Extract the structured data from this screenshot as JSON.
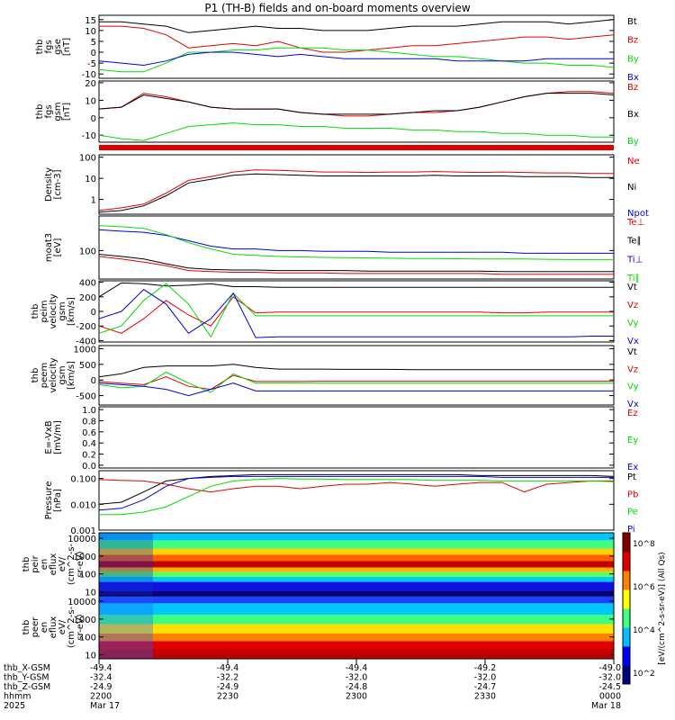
{
  "title": "P1 (TH-B) fields and on-board moments overview",
  "colors": {
    "black": "#000000",
    "red": "#e00000",
    "green": "#00dd00",
    "blue": "#0000e0"
  },
  "chart_data": [
    {
      "type": "line",
      "panel": "fgs-gse",
      "ylabel": [
        "thb",
        "fgs",
        "gse",
        "[nT]"
      ],
      "ylim": [
        -12,
        17
      ],
      "yticks": [
        15,
        10,
        5,
        0,
        -5,
        -10
      ],
      "series": [
        {
          "name": "Bt",
          "color": "#000000",
          "values": [
            14,
            14,
            13,
            12,
            9,
            10,
            11,
            12,
            11,
            11,
            10,
            10,
            10,
            11,
            12,
            12,
            12,
            13,
            14,
            14,
            14,
            13,
            14,
            15
          ]
        },
        {
          "name": "Bz",
          "color": "#e00000",
          "values": [
            12,
            12,
            11,
            8,
            2,
            3,
            4,
            3,
            5,
            2,
            0,
            0,
            1,
            2,
            3,
            3,
            4,
            5,
            6,
            7,
            7,
            6,
            7,
            8
          ]
        },
        {
          "name": "By",
          "color": "#00dd00",
          "values": [
            -8,
            -9,
            -9,
            -5,
            0,
            0,
            1,
            1,
            2,
            2,
            2,
            1,
            1,
            0,
            -1,
            -2,
            -2,
            -3,
            -4,
            -5,
            -5,
            -6,
            -6,
            -7
          ]
        },
        {
          "name": "Bx",
          "color": "#0000e0",
          "values": [
            -4,
            -5,
            -6,
            -4,
            -1,
            0,
            0,
            -1,
            -2,
            -1,
            -2,
            -3,
            -3,
            -3,
            -3,
            -3,
            -4,
            -4,
            -4,
            -4,
            -3,
            -3,
            -3,
            -3
          ]
        }
      ]
    },
    {
      "type": "line",
      "panel": "fgs-gsm",
      "ylabel": [
        "thb",
        "fgs",
        "gsm",
        "[nT]"
      ],
      "ylim": [
        -14,
        21
      ],
      "yticks": [
        20,
        10,
        0,
        -10
      ],
      "series": [
        {
          "name": "Bz",
          "color": "#e00000",
          "values": [
            5,
            6,
            14,
            12,
            9,
            6,
            5,
            5,
            5,
            3,
            2,
            1,
            1,
            2,
            3,
            3,
            4,
            6,
            9,
            12,
            14,
            15,
            15,
            14
          ]
        },
        {
          "name": "Bx",
          "color": "#000000",
          "values": [
            5,
            6,
            13,
            11,
            9,
            6,
            5,
            5,
            5,
            3,
            2,
            2,
            2,
            2,
            3,
            4,
            4,
            6,
            9,
            12,
            14,
            14,
            14,
            13
          ]
        },
        {
          "name": "By",
          "color": "#00dd00",
          "values": [
            -10,
            -12,
            -13,
            -9,
            -5,
            -4,
            -3,
            -4,
            -4,
            -5,
            -5,
            -6,
            -6,
            -6,
            -7,
            -7,
            -8,
            -8,
            -9,
            -9,
            -10,
            -10,
            -11,
            -11
          ]
        }
      ]
    },
    {
      "type": "line",
      "panel": "density",
      "ylabel": [
        "Density",
        "[cm-3]"
      ],
      "ylog": true,
      "ylim": [
        0.2,
        130
      ],
      "yticks": [
        100,
        10,
        1
      ],
      "series": [
        {
          "name": "Ne",
          "color": "#e00000",
          "values": [
            0.3,
            0.4,
            0.6,
            2,
            8,
            12,
            20,
            25,
            24,
            22,
            20,
            20,
            19,
            20,
            20,
            21,
            20,
            19,
            20,
            19,
            18,
            18,
            17,
            17
          ]
        },
        {
          "name": "Ni",
          "color": "#000000",
          "values": [
            0.25,
            0.3,
            0.5,
            1.5,
            6,
            9,
            14,
            16,
            15,
            14,
            13,
            13,
            13,
            13,
            13,
            14,
            13,
            13,
            13,
            12,
            12,
            12,
            11,
            11
          ]
        },
        {
          "name": "Npot",
          "color": "#0000e0",
          "values": []
        }
      ]
    },
    {
      "type": "line",
      "panel": "temperature",
      "ylabel": [
        "moat3",
        "[eV]"
      ],
      "ylog": true,
      "ylim": [
        18,
        800
      ],
      "yticks": [
        100
      ],
      "series": [
        {
          "name": "Te⊥",
          "color": "#e00000",
          "values": [
            70,
            60,
            50,
            40,
            30,
            28,
            27,
            27,
            26,
            26,
            26,
            25,
            25,
            25,
            25,
            25,
            25,
            25,
            24,
            24,
            24,
            24,
            24,
            24
          ]
        },
        {
          "name": "Te∥",
          "color": "#000000",
          "values": [
            80,
            70,
            60,
            45,
            35,
            32,
            31,
            31,
            30,
            30,
            30,
            30,
            29,
            29,
            29,
            29,
            29,
            29,
            28,
            28,
            28,
            28,
            28,
            28
          ]
        },
        {
          "name": "Ti⊥",
          "color": "#0000e0",
          "values": [
            350,
            320,
            300,
            250,
            180,
            130,
            110,
            110,
            100,
            100,
            95,
            95,
            95,
            90,
            90,
            90,
            90,
            90,
            90,
            85,
            85,
            85,
            85,
            85
          ]
        },
        {
          "name": "Ti∥",
          "color": "#00dd00",
          "values": [
            450,
            420,
            380,
            260,
            160,
            110,
            80,
            75,
            70,
            68,
            66,
            65,
            64,
            63,
            62,
            62,
            61,
            60,
            60,
            60,
            59,
            58,
            58,
            58
          ]
        }
      ]
    },
    {
      "type": "line",
      "panel": "peim-velocity",
      "ylabel": [
        "thb",
        "peim",
        "velocity",
        "gsm",
        "[km/s]"
      ],
      "ylim": [
        -420,
        420
      ],
      "yticks": [
        400,
        200,
        0,
        -200,
        -400
      ],
      "series": [
        {
          "name": "Vt",
          "color": "#000000",
          "values": [
            200,
            390,
            380,
            350,
            360,
            380,
            340,
            340,
            330,
            330,
            330,
            330,
            330,
            330,
            330,
            330,
            330,
            330,
            330,
            330,
            330,
            330,
            330,
            330
          ]
        },
        {
          "name": "Vz",
          "color": "#e00000",
          "values": [
            -200,
            -300,
            -100,
            150,
            -50,
            -200,
            200,
            -20,
            -10,
            -10,
            -10,
            -10,
            -10,
            -10,
            -10,
            -10,
            -10,
            -10,
            -20,
            -20,
            -10,
            -10,
            -10,
            -10
          ]
        },
        {
          "name": "Vy",
          "color": "#00dd00",
          "values": [
            -300,
            -200,
            150,
            380,
            100,
            -350,
            250,
            -60,
            -60,
            -60,
            -60,
            -60,
            -60,
            -60,
            -60,
            -60,
            -60,
            -60,
            -60,
            -60,
            -60,
            -60,
            -60,
            -60
          ]
        },
        {
          "name": "Vx",
          "color": "#0000e0",
          "values": [
            -100,
            0,
            300,
            100,
            -300,
            -100,
            250,
            -360,
            -350,
            -350,
            -350,
            -350,
            -350,
            -350,
            -350,
            -350,
            -350,
            -350,
            -350,
            -350,
            -350,
            -350,
            -340,
            -340
          ]
        }
      ]
    },
    {
      "type": "line",
      "panel": "peem-velocity",
      "ylabel": [
        "thb",
        "peem",
        "velocity",
        "gsm",
        "[km/s]"
      ],
      "ylim": [
        -800,
        1100
      ],
      "yticks": [
        1000,
        500,
        0,
        -500
      ],
      "series": [
        {
          "name": "Vt",
          "color": "#000000",
          "values": [
            100,
            200,
            400,
            450,
            450,
            450,
            500,
            400,
            350,
            350,
            350,
            340,
            340,
            340,
            330,
            330,
            330,
            330,
            330,
            330,
            330,
            330,
            330,
            330
          ]
        },
        {
          "name": "Vz",
          "color": "#e00000",
          "values": [
            -50,
            -100,
            -150,
            100,
            -200,
            -300,
            150,
            -50,
            -50,
            -50,
            -40,
            -40,
            -40,
            -40,
            -40,
            -40,
            -40,
            -40,
            -40,
            -40,
            -40,
            -40,
            -40,
            -40
          ]
        },
        {
          "name": "Vy",
          "color": "#00dd00",
          "values": [
            -150,
            -250,
            -200,
            250,
            -100,
            -400,
            200,
            -100,
            -100,
            -100,
            -100,
            -100,
            -100,
            -100,
            -100,
            -100,
            -100,
            -100,
            -100,
            -100,
            -100,
            -100,
            -100,
            -100
          ]
        },
        {
          "name": "Vx",
          "color": "#0000e0",
          "values": [
            -100,
            -150,
            -200,
            -300,
            -500,
            -300,
            -100,
            -350,
            -350,
            -350,
            -350,
            -350,
            -350,
            -350,
            -350,
            -350,
            -350,
            -350,
            -350,
            -350,
            -350,
            -350,
            -350,
            -350
          ]
        }
      ]
    },
    {
      "type": "line",
      "panel": "efield",
      "ylabel": [
        "E=-VxB",
        "[mV/m]"
      ],
      "ylim": [
        -0.05,
        1.05
      ],
      "yticks": [
        "1.0",
        "0.8",
        "0.6",
        "0.4",
        "0.2",
        "0.0"
      ],
      "series": [
        {
          "name": "Ez",
          "color": "#e00000",
          "values": []
        },
        {
          "name": "Ey",
          "color": "#00dd00",
          "values": []
        },
        {
          "name": "Ex",
          "color": "#0000e0",
          "values": []
        }
      ]
    },
    {
      "type": "line",
      "panel": "pressure",
      "ylabel": [
        "Pressure",
        "[nPa]"
      ],
      "ylog": true,
      "ylim": [
        0.001,
        0.2
      ],
      "yticks": [
        "0.100",
        "0.010",
        "0.001"
      ],
      "series": [
        {
          "name": "Pt",
          "color": "#000000",
          "values": [
            0.01,
            0.012,
            0.03,
            0.08,
            0.1,
            0.12,
            0.13,
            0.14,
            0.14,
            0.14,
            0.14,
            0.14,
            0.14,
            0.14,
            0.14,
            0.14,
            0.14,
            0.13,
            0.13,
            0.13,
            0.13,
            0.13,
            0.13,
            0.12
          ]
        },
        {
          "name": "Pb",
          "color": "#e00000",
          "values": [
            0.09,
            0.085,
            0.08,
            0.06,
            0.04,
            0.03,
            0.04,
            0.05,
            0.05,
            0.04,
            0.05,
            0.06,
            0.06,
            0.07,
            0.06,
            0.05,
            0.06,
            0.07,
            0.07,
            0.03,
            0.06,
            0.07,
            0.08,
            0.08
          ]
        },
        {
          "name": "Pe",
          "color": "#00dd00",
          "values": [
            0.004,
            0.004,
            0.005,
            0.008,
            0.02,
            0.05,
            0.08,
            0.09,
            0.1,
            0.095,
            0.095,
            0.09,
            0.09,
            0.09,
            0.09,
            0.085,
            0.085,
            0.085,
            0.08,
            0.08,
            0.08,
            0.08,
            0.08,
            0.075
          ]
        },
        {
          "name": "Pi",
          "color": "#0000e0",
          "values": [
            0.006,
            0.007,
            0.015,
            0.05,
            0.1,
            0.11,
            0.12,
            0.12,
            0.12,
            0.12,
            0.12,
            0.12,
            0.12,
            0.12,
            0.12,
            0.12,
            0.12,
            0.12,
            0.11,
            0.11,
            0.11,
            0.11,
            0.11,
            0.11
          ]
        }
      ]
    },
    {
      "type": "heatmap",
      "panel": "peir-spectrogram",
      "ylabel": [
        "thb",
        "peir",
        "en",
        "eflux",
        "eV/",
        "(cm^2-s-",
        "sr-eV)"
      ],
      "ylog": true,
      "ylim": [
        6,
        20000
      ],
      "yticks": [
        "10000",
        "1000",
        "100",
        "10"
      ]
    },
    {
      "type": "heatmap",
      "panel": "peer-spectrogram",
      "ylabel": [
        "thb",
        "peer",
        "en",
        "eflux",
        "eV/",
        "(cm^2-s-",
        "sr-eV)"
      ],
      "ylog": true,
      "ylim": [
        6,
        20000
      ],
      "yticks": [
        "10000",
        "1000",
        "100",
        "10"
      ]
    },
    {
      "type": "colorbar",
      "label": "[eV/(cm^2-s-sr-eV)] (All Qs)",
      "ticks": [
        "10^8",
        "10^6",
        "10^4",
        "10^2"
      ]
    }
  ],
  "xaxis": {
    "rows": [
      {
        "label": "thb_X-GSM",
        "values": [
          "-49.4",
          "-49.4",
          "-49.4",
          "-49.2",
          "-49.0"
        ]
      },
      {
        "label": "thb_Y-GSM",
        "values": [
          "-32.4",
          "-32.2",
          "-32.0",
          "-32.0",
          "-32.0"
        ]
      },
      {
        "label": "thb_Z-GSM",
        "values": [
          "-24.9",
          "-24.9",
          "-24.8",
          "-24.7",
          "-24.5"
        ]
      },
      {
        "label": "hhmm",
        "values": [
          "2200",
          "2230",
          "2300",
          "2330",
          "0000"
        ]
      },
      {
        "label": "2025",
        "values": [
          "Mar 17",
          "",
          "",
          "",
          "Mar 18"
        ]
      }
    ]
  }
}
